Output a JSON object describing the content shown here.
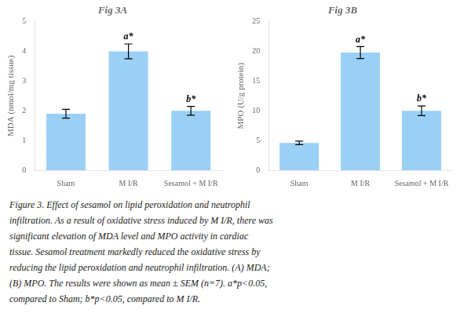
{
  "chart_data": [
    {
      "type": "bar",
      "title": "Fig 3A",
      "categories": [
        "Sham",
        "M I/R",
        "Sesamol + M I/R"
      ],
      "values": [
        1.9,
        4.0,
        2.0
      ],
      "errors": [
        0.15,
        0.25,
        0.15
      ],
      "ylabel": "MDA (nmol/mg tissue)",
      "ylim": [
        0,
        5
      ],
      "yticks": [
        0,
        1,
        2,
        3,
        4,
        5
      ],
      "grid": false,
      "annotations": [
        {
          "category": "M I/R",
          "text": "a*"
        },
        {
          "category": "Sesamol + M I/R",
          "text": "b*"
        }
      ]
    },
    {
      "type": "bar",
      "title": "Fig 3B",
      "categories": [
        "Sham",
        "M I/R",
        "Sesamol + M I/R"
      ],
      "values": [
        4.6,
        19.8,
        10.0
      ],
      "errors": [
        0.3,
        1.0,
        0.8
      ],
      "ylabel": "MPO (U/g protein)",
      "ylim": [
        0,
        25
      ],
      "yticks": [
        0,
        5,
        10,
        15,
        20,
        25
      ],
      "grid": false,
      "annotations": [
        {
          "category": "M I/R",
          "text": "a*"
        },
        {
          "category": "Sesamol + M I/R",
          "text": "b*"
        }
      ]
    }
  ],
  "caption": [
    "Figure 3. Effect of sesamol on lipid peroxidation and neutrophil",
    "infiltration. As a result of oxidative stress induced by M I/R, there was",
    "significant elevation of MDA level and MPO activity in cardiac",
    "tissue. Sesamol treatment markedly reduced the oxidative stress by",
    "reducing the lipid peroxidation and neutrophil infiltration. (A) MDA;",
    "(B) MPO. The results were shown as mean ± SEM (n=7). a*p<0.05,",
    "compared to Sham; b*p<0.05, compared to M I/R."
  ]
}
